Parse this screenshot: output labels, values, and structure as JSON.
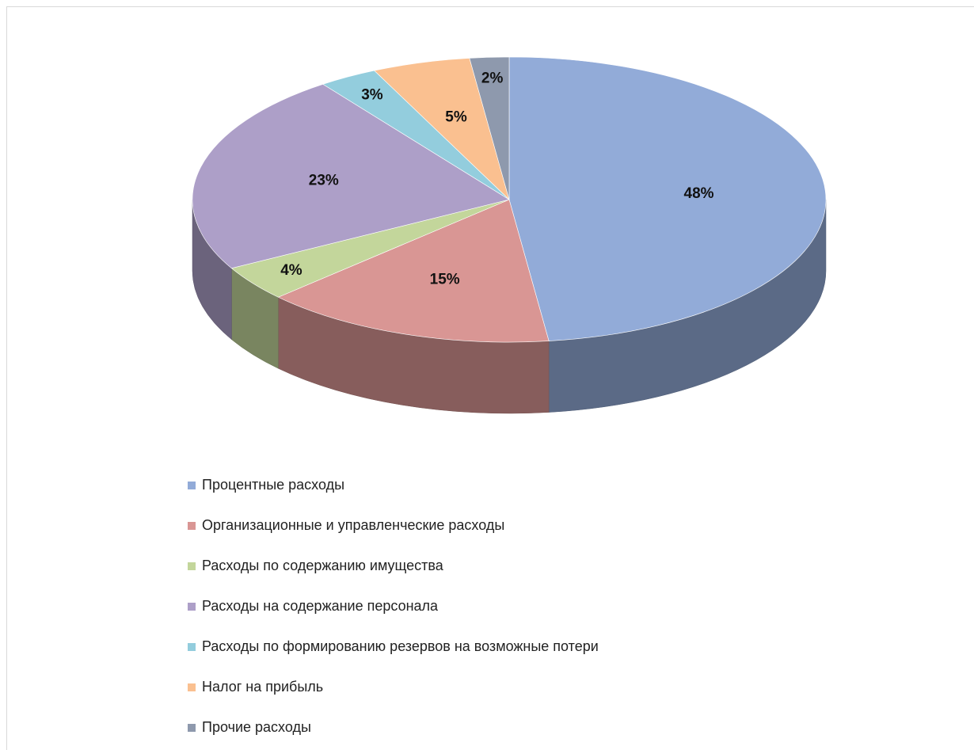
{
  "chart_data": {
    "type": "pie",
    "categories": [
      "Процентные расходы",
      "Организационные и управленческие расходы",
      "Расходы по содержанию имущества",
      "Расходы на содержание персонала",
      "Расходы по формированию резервов на возможные потери",
      "Налог на прибыль",
      "Прочие расходы"
    ],
    "values": [
      48,
      15,
      4,
      23,
      3,
      5,
      2
    ],
    "value_labels": [
      "48%",
      "15%",
      "4%",
      "23%",
      "3%",
      "5%",
      "2%"
    ],
    "colors": [
      "#92abd8",
      "#d99694",
      "#c3d69b",
      "#ad9fc8",
      "#93cddd",
      "#fac090",
      "#8e99ad"
    ],
    "legend": "bottom"
  }
}
